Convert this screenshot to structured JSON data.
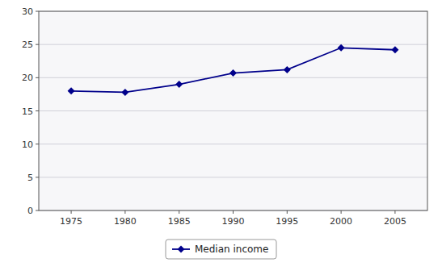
{
  "chart_data": {
    "type": "line",
    "x": [
      1975,
      1980,
      1985,
      1990,
      1995,
      2000,
      2005
    ],
    "series": [
      {
        "name": "Median income",
        "color": "#00008B",
        "marker": "diamond",
        "values": [
          18.0,
          17.8,
          19.0,
          20.7,
          21.2,
          24.5,
          24.2
        ]
      }
    ],
    "xlim": [
      1972,
      2008
    ],
    "xticks": [
      1975,
      1980,
      1985,
      1990,
      1995,
      2000,
      2005
    ],
    "ylim": [
      0,
      30
    ],
    "yticks": [
      0,
      5,
      10,
      15,
      20,
      25,
      30
    ],
    "grid": "y",
    "legend": "bottom"
  }
}
